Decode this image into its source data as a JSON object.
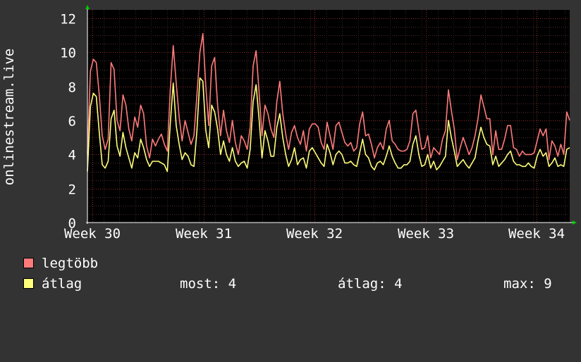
{
  "chart_data": {
    "type": "line",
    "ylabel": "onlinestream.live",
    "ylim": [
      0,
      12.5
    ],
    "yticks": [
      "0",
      "2",
      "4",
      "6",
      "8",
      "10",
      "12"
    ],
    "x_week_labels": [
      "Week 30",
      "Week 31",
      "Week 32",
      "Week 33",
      "Week 34"
    ],
    "grid": true,
    "series": [
      {
        "name": "legtöbb",
        "color": "#ff7b7b",
        "values": [
          4.0,
          8.9,
          9.6,
          9.4,
          7.5,
          5.1,
          4.3,
          4.9,
          9.4,
          9.0,
          6.0,
          5.4,
          7.5,
          6.9,
          5.5,
          4.8,
          6.2,
          5.6,
          6.9,
          6.4,
          4.5,
          3.8,
          4.9,
          4.5,
          4.9,
          5.2,
          4.6,
          4.2,
          7.8,
          10.4,
          8.2,
          6.2,
          4.8,
          6.0,
          5.3,
          4.6,
          5.1,
          7.5,
          10.0,
          11.1,
          8.0,
          5.7,
          9.2,
          9.7,
          6.9,
          5.1,
          6.6,
          5.4,
          4.7,
          6.0,
          4.7,
          4.0,
          5.1,
          4.8,
          4.3,
          5.6,
          9.2,
          10.1,
          7.7,
          5.1,
          6.9,
          6.4,
          5.5,
          5.0,
          7.1,
          8.3,
          6.4,
          5.2,
          4.3,
          5.3,
          5.7,
          5.0,
          4.6,
          5.4,
          4.2,
          5.5,
          5.8,
          5.8,
          5.6,
          4.7,
          4.3,
          5.9,
          5.1,
          4.3,
          5.7,
          5.9,
          5.3,
          4.7,
          4.5,
          4.7,
          4.2,
          4.4,
          5.8,
          6.5,
          5.1,
          5.2,
          4.6,
          3.8,
          4.4,
          4.7,
          4.3,
          5.5,
          6.0,
          4.8,
          4.6,
          4.3,
          4.2,
          4.2,
          4.3,
          4.8,
          6.4,
          6.6,
          5.4,
          4.3,
          4.4,
          5.1,
          3.8,
          4.4,
          4.2,
          4.0,
          4.9,
          5.4,
          7.8,
          6.6,
          5.5,
          3.7,
          4.4,
          5.0,
          4.5,
          4.0,
          4.4,
          5.1,
          6.1,
          7.5,
          6.8,
          6.1,
          6.1,
          4.0,
          5.4,
          4.3,
          4.3,
          4.9,
          5.7,
          5.7,
          4.4,
          4.3,
          3.9,
          4.2,
          4.0,
          4.0,
          4.0,
          4.1,
          4.8,
          5.5,
          5.1,
          5.5,
          3.7,
          4.8,
          4.5,
          3.9,
          4.6,
          4.0,
          6.5,
          6.0
        ]
      },
      {
        "name": "átlag",
        "color": "#ffff7b",
        "values": [
          3.0,
          6.8,
          7.6,
          7.4,
          5.3,
          3.4,
          3.2,
          3.6,
          6.1,
          6.6,
          4.5,
          3.9,
          5.3,
          4.4,
          3.8,
          3.2,
          4.1,
          3.8,
          4.9,
          4.4,
          3.7,
          3.3,
          3.6,
          3.6,
          3.6,
          3.5,
          3.4,
          3.0,
          5.8,
          8.2,
          5.7,
          4.6,
          3.7,
          4.1,
          3.9,
          3.4,
          3.3,
          5.4,
          8.5,
          8.3,
          5.4,
          4.4,
          6.9,
          6.5,
          5.5,
          4.0,
          4.8,
          4.0,
          3.6,
          4.4,
          3.6,
          3.3,
          3.5,
          3.6,
          3.2,
          4.3,
          7.1,
          8.1,
          6.1,
          3.8,
          5.4,
          4.8,
          3.9,
          3.9,
          5.6,
          6.4,
          5.0,
          4.0,
          3.3,
          3.7,
          4.4,
          3.4,
          3.7,
          3.8,
          3.2,
          4.2,
          4.4,
          4.1,
          3.8,
          3.5,
          3.3,
          4.6,
          4.1,
          3.4,
          4.0,
          4.2,
          4.0,
          3.5,
          3.5,
          3.6,
          3.4,
          3.3,
          4.1,
          4.9,
          4.0,
          3.8,
          3.3,
          3.1,
          3.5,
          3.6,
          3.4,
          3.9,
          4.5,
          3.9,
          3.5,
          3.2,
          3.2,
          3.4,
          3.4,
          3.6,
          4.6,
          5.1,
          4.0,
          3.3,
          3.4,
          4.0,
          3.2,
          3.6,
          3.1,
          3.3,
          3.6,
          3.9,
          6.0,
          5.0,
          4.2,
          3.3,
          3.5,
          3.7,
          3.4,
          3.2,
          3.5,
          3.8,
          4.8,
          5.6,
          5.0,
          4.6,
          4.5,
          3.4,
          3.9,
          3.3,
          3.5,
          3.7,
          4.0,
          4.2,
          3.6,
          3.4,
          3.4,
          3.3,
          3.3,
          3.5,
          3.3,
          3.2,
          3.9,
          4.3,
          3.9,
          4.1,
          3.3,
          3.5,
          3.8,
          3.3,
          3.4,
          3.3,
          4.3,
          4.4
        ]
      }
    ]
  },
  "legend": {
    "max_label": "legtöbb",
    "avg_label": "átlag",
    "stat_now": "most: 4",
    "stat_avg": "átlag: 4",
    "stat_max": "max: 9"
  }
}
